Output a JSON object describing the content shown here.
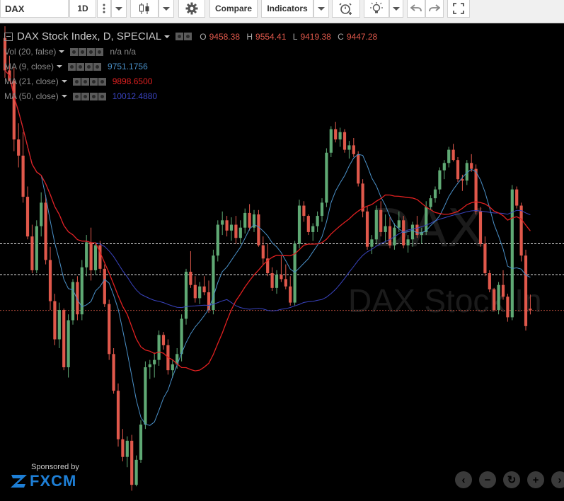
{
  "toolbar": {
    "symbol": "DAX",
    "interval": "1D",
    "compare_label": "Compare",
    "indicators_label": "Indicators"
  },
  "header": {
    "title": "DAX Stock Index, D, SPECIAL",
    "ohlc": {
      "o_label": "O",
      "o": "9458.38",
      "h_label": "H",
      "h": "9554.41",
      "l_label": "L",
      "l": "9419.38",
      "c_label": "C",
      "c": "9447.28"
    }
  },
  "indicators": [
    {
      "label": "Vol (20, false)",
      "value": "n/a  n/a",
      "color": "#888888"
    },
    {
      "label": "MA (9, close)",
      "value": "9751.1756",
      "color": "#4a90c8"
    },
    {
      "label": "MA (21, close)",
      "value": "9898.6500",
      "color": "#e02020"
    },
    {
      "label": "MA (50, close)",
      "value": "10012.4880",
      "color": "#3a44c0"
    }
  ],
  "watermark": {
    "line1": "DAX",
    "line2": "DAX Stock In"
  },
  "sponsor": {
    "text": "Sponsored by",
    "brand": "FXCM"
  },
  "colors": {
    "up": "#5fa974",
    "down": "#e0584b",
    "ma9": "#4a90c8",
    "ma21": "#e02020",
    "ma50": "#3a44c0"
  },
  "chart_data": {
    "type": "candlestick",
    "price_range": [
      8150,
      11400
    ],
    "candles": [
      [
        11300,
        11380,
        11030,
        11080
      ],
      [
        11080,
        11180,
        11005,
        11010
      ],
      [
        11010,
        11100,
        10530,
        10610
      ],
      [
        10610,
        10720,
        10420,
        10500
      ],
      [
        10500,
        10660,
        10180,
        10220
      ],
      [
        10220,
        10290,
        9930,
        9950
      ],
      [
        9950,
        10030,
        9700,
        9720
      ],
      [
        9720,
        10060,
        9700,
        10020
      ],
      [
        10020,
        10250,
        9950,
        10180
      ],
      [
        10180,
        10230,
        9760,
        9790
      ],
      [
        9790,
        9880,
        9450,
        9510
      ],
      [
        9510,
        9560,
        9210,
        9250
      ],
      [
        9250,
        9500,
        9190,
        9450
      ],
      [
        9450,
        9460,
        9040,
        9060
      ],
      [
        9060,
        9420,
        8990,
        9380
      ],
      [
        9380,
        9660,
        9350,
        9640
      ],
      [
        9640,
        9680,
        9380,
        9420
      ],
      [
        9420,
        9790,
        9380,
        9740
      ],
      [
        9740,
        9960,
        9680,
        9910
      ],
      [
        9910,
        10010,
        9650,
        9720
      ],
      [
        9720,
        9900,
        9690,
        9890
      ],
      [
        9890,
        9920,
        9700,
        9730
      ],
      [
        9730,
        9760,
        9470,
        9490
      ],
      [
        9490,
        9520,
        9110,
        9150
      ],
      [
        9150,
        9190,
        8880,
        8900
      ],
      [
        8900,
        8950,
        8520,
        8570
      ],
      [
        8570,
        8640,
        8420,
        8450
      ],
      [
        8450,
        8590,
        8380,
        8560
      ],
      [
        8560,
        8600,
        8220,
        8260
      ],
      [
        8260,
        8460,
        8250,
        8430
      ],
      [
        8430,
        8700,
        8410,
        8670
      ],
      [
        8670,
        9100,
        8640,
        9060
      ],
      [
        9060,
        9110,
        8980,
        9080
      ],
      [
        9080,
        9160,
        8990,
        9110
      ],
      [
        9110,
        9310,
        9070,
        9280
      ],
      [
        9280,
        9300,
        9180,
        9210
      ],
      [
        9210,
        9250,
        9010,
        9040
      ],
      [
        9040,
        9110,
        8990,
        9080
      ],
      [
        9080,
        9190,
        9050,
        9150
      ],
      [
        9150,
        9420,
        9100,
        9390
      ],
      [
        9390,
        9730,
        9350,
        9710
      ],
      [
        9710,
        9850,
        9600,
        9620
      ],
      [
        9620,
        9680,
        9500,
        9530
      ],
      [
        9530,
        9640,
        9490,
        9610
      ],
      [
        9610,
        9680,
        9550,
        9570
      ],
      [
        9570,
        9650,
        9430,
        9450
      ],
      [
        9450,
        9860,
        9420,
        9820
      ],
      [
        9820,
        10060,
        9780,
        10030
      ],
      [
        10030,
        10120,
        9960,
        10060
      ],
      [
        10060,
        10090,
        9950,
        9990
      ],
      [
        9990,
        10080,
        9920,
        10030
      ],
      [
        10030,
        10090,
        9900,
        9940
      ],
      [
        9940,
        10060,
        9900,
        10010
      ],
      [
        10010,
        10140,
        9970,
        10110
      ],
      [
        10110,
        10170,
        9990,
        10010
      ],
      [
        10010,
        10130,
        9980,
        10100
      ],
      [
        10100,
        10130,
        9880,
        9890
      ],
      [
        9890,
        9950,
        9760,
        9800
      ],
      [
        9800,
        9900,
        9680,
        9700
      ],
      [
        9700,
        9740,
        9580,
        9600
      ],
      [
        9600,
        9720,
        9560,
        9690
      ],
      [
        9690,
        9820,
        9640,
        9660
      ],
      [
        9660,
        9760,
        9590,
        9610
      ],
      [
        9610,
        9680,
        9480,
        9500
      ],
      [
        9500,
        9920,
        9480,
        9900
      ],
      [
        9900,
        10200,
        9870,
        10160
      ],
      [
        10160,
        10190,
        10050,
        10090
      ],
      [
        10090,
        10100,
        9960,
        9980
      ],
      [
        9980,
        10040,
        9920,
        10020
      ],
      [
        10020,
        10120,
        9980,
        10090
      ],
      [
        10090,
        10210,
        10050,
        10180
      ],
      [
        10180,
        10550,
        10150,
        10520
      ],
      [
        10520,
        10700,
        10490,
        10680
      ],
      [
        10680,
        10730,
        10590,
        10610
      ],
      [
        10610,
        10690,
        10560,
        10660
      ],
      [
        10660,
        10680,
        10520,
        10540
      ],
      [
        10540,
        10600,
        10480,
        10570
      ],
      [
        10570,
        10620,
        10490,
        10510
      ],
      [
        10510,
        10530,
        10290,
        10310
      ],
      [
        10310,
        10340,
        10080,
        10120
      ],
      [
        10120,
        10160,
        9860,
        9880
      ],
      [
        9880,
        9960,
        9830,
        9930
      ],
      [
        9930,
        10160,
        9900,
        10130
      ],
      [
        10130,
        10190,
        9950,
        9980
      ],
      [
        9980,
        10100,
        9910,
        10020
      ],
      [
        10020,
        10080,
        9870,
        9890
      ],
      [
        9890,
        10040,
        9860,
        10010
      ],
      [
        10010,
        10120,
        9980,
        10060
      ],
      [
        10060,
        10090,
        9870,
        9890
      ],
      [
        9890,
        9960,
        9840,
        9930
      ],
      [
        9930,
        10050,
        9880,
        10030
      ],
      [
        10030,
        10090,
        9940,
        9960
      ],
      [
        9960,
        10010,
        9900,
        9980
      ],
      [
        9980,
        10190,
        9960,
        10150
      ],
      [
        10150,
        10230,
        10130,
        10210
      ],
      [
        10210,
        10290,
        10180,
        10270
      ],
      [
        10270,
        10420,
        10240,
        10400
      ],
      [
        10400,
        10470,
        10340,
        10450
      ],
      [
        10450,
        10560,
        10420,
        10540
      ],
      [
        10540,
        10580,
        10460,
        10470
      ],
      [
        10470,
        10490,
        10320,
        10340
      ],
      [
        10340,
        10370,
        10260,
        10330
      ],
      [
        10330,
        10470,
        10300,
        10450
      ],
      [
        10450,
        10510,
        10390,
        10410
      ],
      [
        10410,
        10440,
        10100,
        10120
      ],
      [
        10120,
        10150,
        9880,
        9900
      ],
      [
        9900,
        9950,
        9680,
        9700
      ],
      [
        9700,
        9720,
        9570,
        9590
      ],
      [
        9590,
        9600,
        9440,
        9450
      ],
      [
        9450,
        9640,
        9420,
        9620
      ],
      [
        9620,
        9720,
        9520,
        9540
      ],
      [
        9540,
        9560,
        9370,
        9400
      ],
      [
        9400,
        10300,
        9380,
        10270
      ],
      [
        10270,
        10290,
        10140,
        10160
      ],
      [
        10160,
        10180,
        9780,
        9820
      ],
      [
        9820,
        9860,
        9310,
        9340
      ],
      [
        9458.38,
        9554.41,
        9419.38,
        9447.28
      ]
    ],
    "horizontal_levels": [
      9900,
      9690,
      9447.28
    ]
  }
}
